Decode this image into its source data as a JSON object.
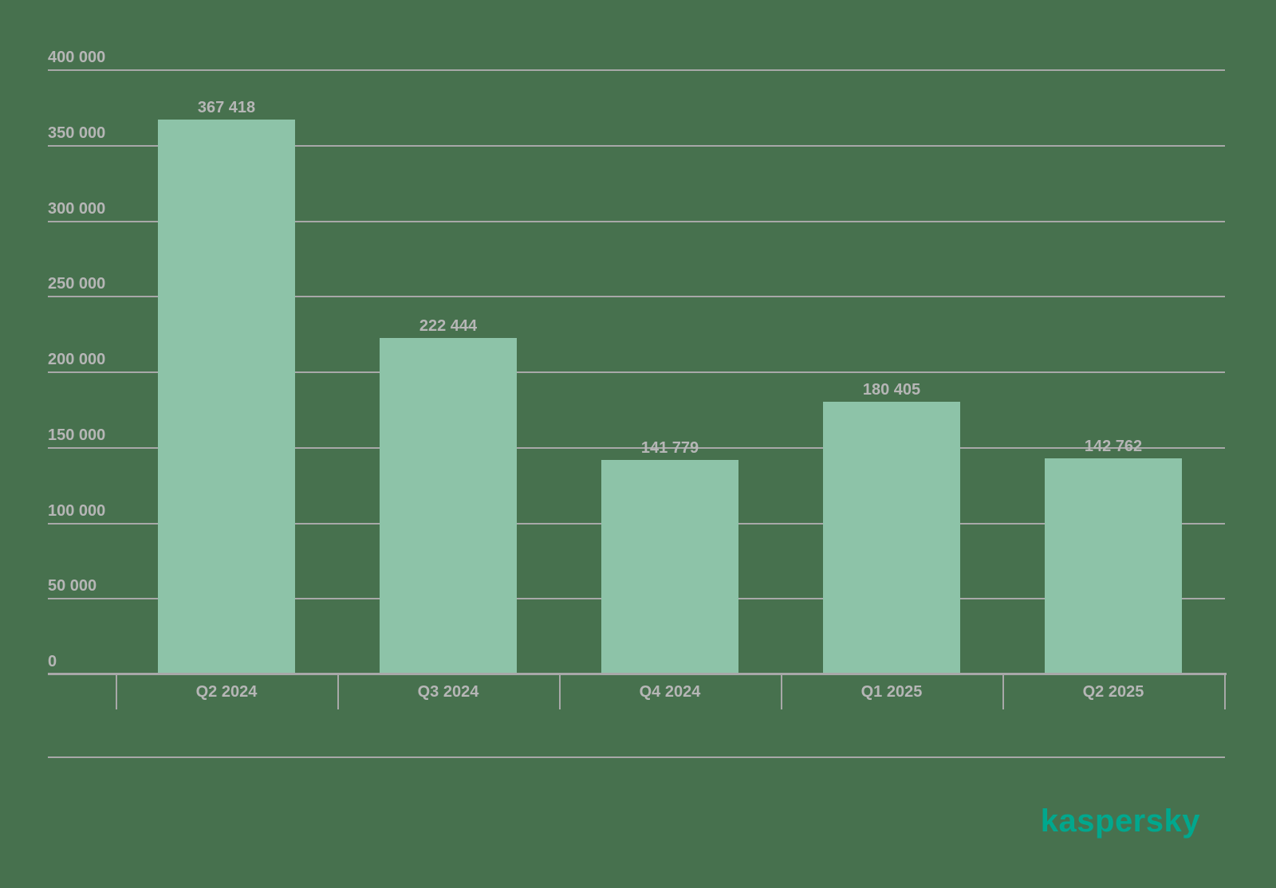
{
  "chart_data": {
    "type": "bar",
    "title": "",
    "xlabel": "",
    "ylabel": "",
    "categories": [
      "Q2 2024",
      "Q3 2024",
      "Q4 2024",
      "Q1 2025",
      "Q2 2025"
    ],
    "values": [
      367418,
      222444,
      141779,
      180405,
      142762
    ],
    "value_labels": [
      "367 418",
      "222 444",
      "141 779",
      "180 405",
      "142 762"
    ],
    "y_axis": {
      "min": 0,
      "max": 400000,
      "tick_step": 50000,
      "tick_labels": [
        "0",
        "50 000",
        "100 000",
        "150 000",
        "200 000",
        "250 000",
        "300 000",
        "350 000",
        "400 000"
      ]
    },
    "grid": true,
    "legend": false,
    "bar_color": "#8DC3A8"
  },
  "colors": {
    "background": "#47714E",
    "bar": "#8DC3A8",
    "line": "#A8A8A8",
    "text": "#B6B6B6",
    "logo": "#00A88E"
  },
  "footer": {
    "logo_text": "kaspersky"
  }
}
